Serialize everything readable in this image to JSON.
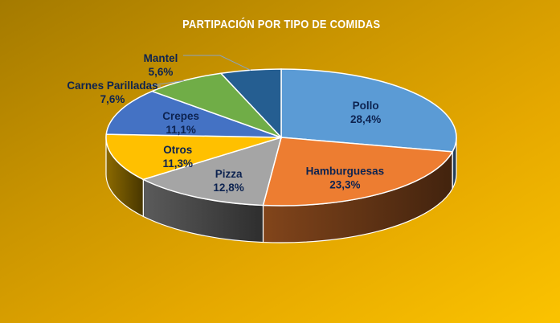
{
  "chart_data": {
    "type": "pie",
    "title": "PARTIPACIÓN  POR TIPO DE COMIDAS",
    "three_d": true,
    "slices": [
      {
        "label": "Pollo",
        "value": 28.4,
        "value_label": "28,4%",
        "color": "#5b9bd5"
      },
      {
        "label": "Hamburguesas",
        "value": 23.3,
        "value_label": "23,3%",
        "color": "#ed7d31"
      },
      {
        "label": "Pizza",
        "value": 12.8,
        "value_label": "12,8%",
        "color": "#a5a5a5"
      },
      {
        "label": "Otros",
        "value": 11.3,
        "value_label": "11,3%",
        "color": "#ffc000"
      },
      {
        "label": "Crepes",
        "value": 11.1,
        "value_label": "11,1%",
        "color": "#4472c4"
      },
      {
        "label": "Carnes Parilladas",
        "value": 7.6,
        "value_label": "7,6%",
        "color": "#70ad47"
      },
      {
        "label": "Mantel",
        "value": 5.6,
        "value_label": "5,6%",
        "color": "#255e91"
      }
    ],
    "background": "#e5a800",
    "label_color": "#0d2350"
  }
}
